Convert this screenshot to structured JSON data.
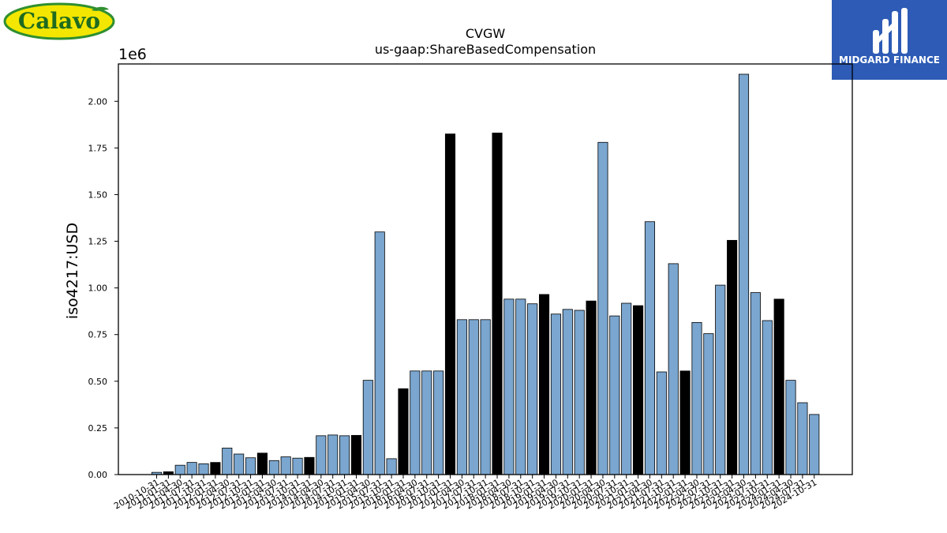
{
  "logos": {
    "left_text": "Calavo",
    "right_text": "MIDGARD FINANCE"
  },
  "chart_data": {
    "type": "bar",
    "title": "CVGW",
    "subtitle": "us-gaap:ShareBasedCompensation",
    "ylabel": "iso4217:USD",
    "xlabel": "",
    "y_multiplier": "1e6",
    "ylim": [
      0,
      2.2
    ],
    "yticks": [
      "0.00",
      "0.25",
      "0.50",
      "0.75",
      "1.00",
      "1.25",
      "1.50",
      "1.75",
      "2.00"
    ],
    "grid": false,
    "colors": {
      "quarter": "#7aa6cf",
      "annual": "#000000"
    },
    "categories": [
      "2010-10-31",
      "2011-01-31",
      "2011-04-30",
      "2011-07-31",
      "2011-10-31",
      "2012-01-31",
      "2012-04-30",
      "2012-07-31",
      "2012-10-31",
      "2013-01-31",
      "2013-04-30",
      "2013-07-31",
      "2013-10-31",
      "2014-01-31",
      "2014-04-30",
      "2014-07-31",
      "2014-10-31",
      "2015-01-31",
      "2015-04-30",
      "2015-07-31",
      "2015-10-31",
      "2016-01-31",
      "2016-04-30",
      "2016-07-31",
      "2016-10-31",
      "2017-01-31",
      "2017-04-30",
      "2017-07-31",
      "2017-10-31",
      "2018-01-31",
      "2018-04-30",
      "2018-07-31",
      "2018-10-31",
      "2019-01-31",
      "2019-04-30",
      "2019-07-31",
      "2019-10-31",
      "2020-01-31",
      "2020-04-30",
      "2020-07-31",
      "2020-10-31",
      "2021-01-31",
      "2021-04-30",
      "2021-07-31",
      "2021-10-31",
      "2022-01-31",
      "2022-04-30",
      "2022-07-31",
      "2022-10-31",
      "2023-01-31",
      "2023-04-30",
      "2023-07-31",
      "2023-10-31",
      "2024-01-31",
      "2024-04-30",
      "2024-07-31",
      "2024-10-31"
    ],
    "values": [
      0.012,
      0.015,
      0.05,
      0.065,
      0.058,
      0.065,
      0.142,
      0.11,
      0.09,
      0.115,
      0.075,
      0.095,
      0.088,
      0.092,
      0.208,
      0.212,
      0.208,
      0.21,
      0.505,
      1.3,
      0.085,
      0.46,
      0.555,
      0.555,
      0.555,
      1.825,
      0.83,
      0.83,
      0.83,
      1.83,
      0.94,
      0.94,
      0.915,
      0.965,
      0.86,
      0.885,
      0.88,
      0.93,
      1.78,
      0.85,
      0.918,
      0.905,
      1.355,
      0.55,
      1.13,
      0.555,
      0.815,
      0.755,
      1.015,
      1.255,
      2.145,
      0.975,
      0.825,
      0.94,
      0.505,
      0.385,
      0.322
    ],
    "annual": [
      false,
      true,
      false,
      false,
      false,
      true,
      false,
      false,
      false,
      true,
      false,
      false,
      false,
      true,
      false,
      false,
      false,
      true,
      false,
      false,
      false,
      true,
      false,
      false,
      false,
      true,
      false,
      false,
      false,
      true,
      false,
      false,
      false,
      true,
      false,
      false,
      false,
      true,
      false,
      false,
      false,
      true,
      false,
      false,
      false,
      true,
      false,
      false,
      false,
      true,
      false,
      false,
      false,
      true,
      false,
      false,
      false
    ]
  }
}
